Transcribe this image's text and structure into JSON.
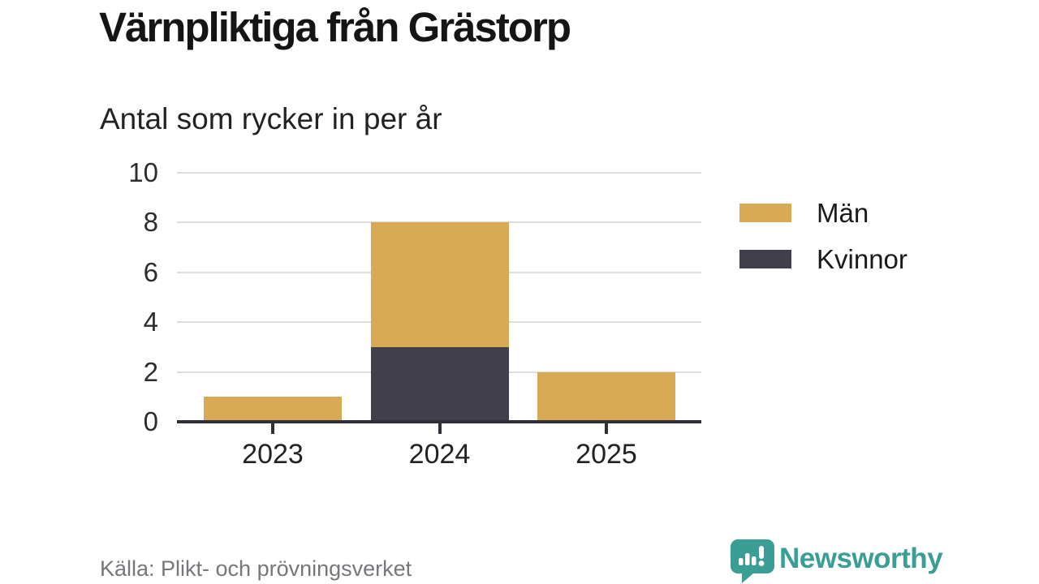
{
  "header": {
    "title": "Värnpliktiga från Grästorp",
    "subtitle": "Antal som rycker in per år"
  },
  "footer": {
    "source": "Källa: Plikt- och prövningsverket",
    "brand_name": "Newsworthy"
  },
  "colors": {
    "men": "#D9AA56",
    "women": "#413F4C",
    "brand_teal": "#3A9E95",
    "gridline": "#DCDCDC",
    "axis": "#2F2F38",
    "title_text": "#151515",
    "source_text": "#76767B"
  },
  "legend": [
    {
      "label": "Män",
      "color": "#D9AA56"
    },
    {
      "label": "Kvinnor",
      "color": "#413F4C"
    }
  ],
  "chart_data": {
    "type": "bar",
    "stacked": true,
    "title": "Värnpliktiga från Grästorp",
    "subtitle": "Antal som rycker in per år",
    "categories": [
      "2023",
      "2024",
      "2025"
    ],
    "series": [
      {
        "name": "Män",
        "color": "#D9AA56",
        "values": [
          1,
          5,
          2
        ]
      },
      {
        "name": "Kvinnor",
        "color": "#413F4C",
        "values": [
          0,
          3,
          0
        ]
      }
    ],
    "stack_bottom_to_top": [
      "Kvinnor",
      "Män"
    ],
    "totals": [
      1,
      8,
      2
    ],
    "xlabel": "",
    "ylabel": "",
    "ylim": [
      0,
      10
    ],
    "yticks": [
      0,
      2,
      4,
      6,
      8,
      10
    ],
    "grid": true,
    "legend_position": "right",
    "source": "Källa: Plikt- och prövningsverket"
  }
}
